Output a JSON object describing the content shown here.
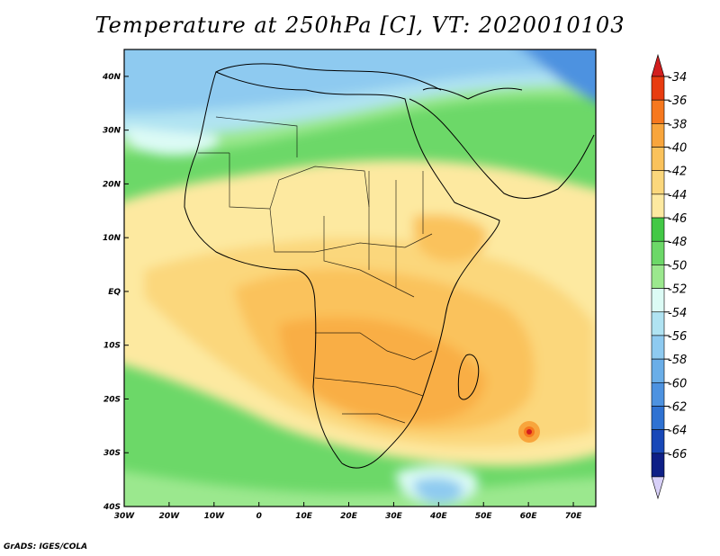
{
  "title": "Temperature at 250hPa [C], VT: 2020010103",
  "credit": "GrADS: IGES/COLA",
  "map": {
    "lon_range": [
      -30,
      75
    ],
    "lat_range": [
      -40,
      45
    ],
    "x_ticks": [
      {
        "value": -30,
        "label": "30W"
      },
      {
        "value": -20,
        "label": "20W"
      },
      {
        "value": -10,
        "label": "10W"
      },
      {
        "value": 0,
        "label": "0"
      },
      {
        "value": 10,
        "label": "10E"
      },
      {
        "value": 20,
        "label": "20E"
      },
      {
        "value": 30,
        "label": "30E"
      },
      {
        "value": 40,
        "label": "40E"
      },
      {
        "value": 50,
        "label": "50E"
      },
      {
        "value": 60,
        "label": "60E"
      },
      {
        "value": 70,
        "label": "70E"
      }
    ],
    "y_ticks": [
      {
        "value": 40,
        "label": "40N"
      },
      {
        "value": 30,
        "label": "30N"
      },
      {
        "value": 20,
        "label": "20N"
      },
      {
        "value": 10,
        "label": "10N"
      },
      {
        "value": 0,
        "label": "EQ"
      },
      {
        "value": -10,
        "label": "10S"
      },
      {
        "value": -20,
        "label": "20S"
      },
      {
        "value": -30,
        "label": "30S"
      },
      {
        "value": -40,
        "label": "40S"
      }
    ]
  },
  "colorbar": {
    "labels": [
      "-34",
      "-36",
      "-38",
      "-40",
      "-42",
      "-44",
      "-46",
      "-48",
      "-50",
      "-52",
      "-54",
      "-56",
      "-58",
      "-60",
      "-62",
      "-64",
      "-66"
    ],
    "colors": [
      "#e83c10",
      "#f6781e",
      "#f8a53c",
      "#fac25c",
      "#fbd77c",
      "#fde9a0",
      "#42c846",
      "#6cd868",
      "#9be88e",
      "#dcfbf5",
      "#b0e3f2",
      "#8ecaf0",
      "#6aaee8",
      "#4d92e0",
      "#2f72d2",
      "#1848b8",
      "#0e1f86"
    ],
    "top_arrow_color": "#d21e1e",
    "bottom_arrow_color": "#d8d0f8"
  }
}
